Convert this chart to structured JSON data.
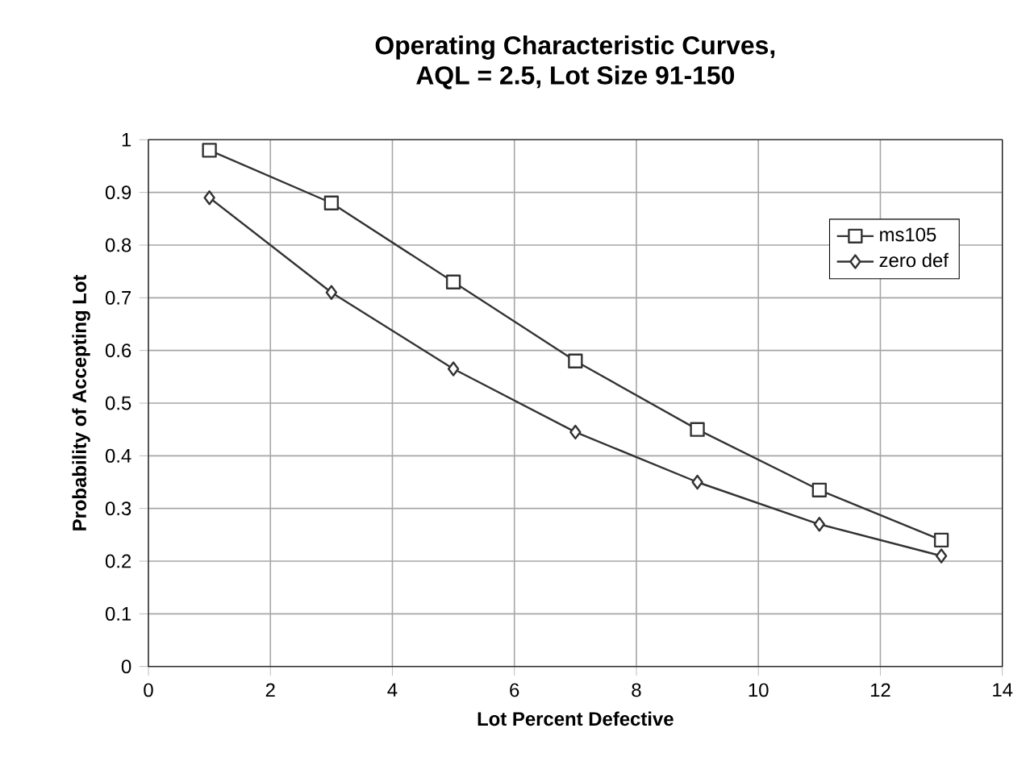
{
  "chart_data": {
    "type": "line",
    "title": "Operating Characteristic Curves,",
    "subtitle": "AQL = 2.5, Lot Size 91-150",
    "xlabel": "Lot Percent Defective",
    "ylabel": "Probability of Accepting Lot",
    "x": [
      1,
      3,
      5,
      7,
      9,
      11,
      13
    ],
    "series": [
      {
        "name": "ms105",
        "color": "#333333",
        "marker": "square",
        "values": [
          0.98,
          0.88,
          0.73,
          0.58,
          0.45,
          0.335,
          0.24
        ]
      },
      {
        "name": "zero def",
        "color": "#333333",
        "marker": "diamond",
        "values": [
          0.89,
          0.71,
          0.565,
          0.445,
          0.35,
          0.27,
          0.21
        ]
      }
    ],
    "xlim": [
      0,
      14
    ],
    "xticks": [
      0,
      2,
      4,
      6,
      8,
      10,
      12,
      14
    ],
    "ylim": [
      0,
      1
    ],
    "yticks": [
      0,
      0.1,
      0.2,
      0.3,
      0.4,
      0.5,
      0.6,
      0.7,
      0.8,
      0.9,
      1
    ],
    "grid": true,
    "legend": "top right",
    "line_style": "solid"
  }
}
